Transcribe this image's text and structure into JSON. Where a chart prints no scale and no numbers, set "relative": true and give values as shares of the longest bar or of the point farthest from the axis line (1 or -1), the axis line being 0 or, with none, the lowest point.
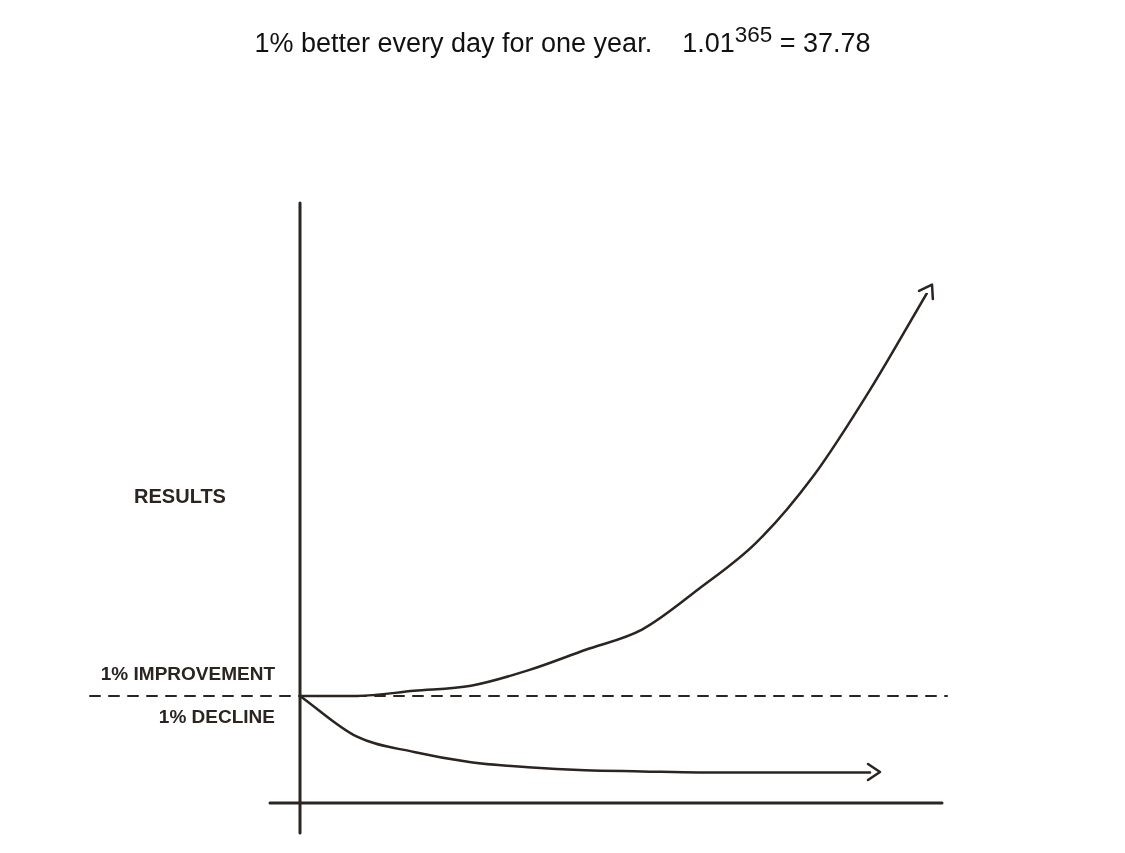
{
  "chart_data": {
    "type": "line",
    "title": "1% better every day for one year.    1.01$^{365}$ = 37.78",
    "ylabel": "RESULTS",
    "relative": true,
    "legend": false,
    "marker": "none",
    "categories": [
      null,
      null,
      null,
      null,
      null,
      null,
      null,
      null,
      null,
      null,
      null,
      null
    ],
    "series": [
      {
        "name": "1% IMPROVEMENT",
        "color": "#2b2420",
        "values": [
          0.21,
          0.21,
          0.22,
          0.23,
          0.26,
          0.3,
          0.34,
          0.42,
          0.51,
          0.64,
          0.81,
          1
        ]
      },
      {
        "name": "1% DECLINE",
        "color": "#2b2420",
        "values": [
          0.21,
          0.13,
          0.1,
          0.08,
          0.07,
          0.064,
          0.062,
          0.06,
          0.06,
          0.06,
          0.06,
          null
        ]
      }
    ],
    "ref_lines": [
      {
        "axis": "y",
        "value": 0.21,
        "line_style": "dashed",
        "color": "#2b2420"
      }
    ]
  }
}
